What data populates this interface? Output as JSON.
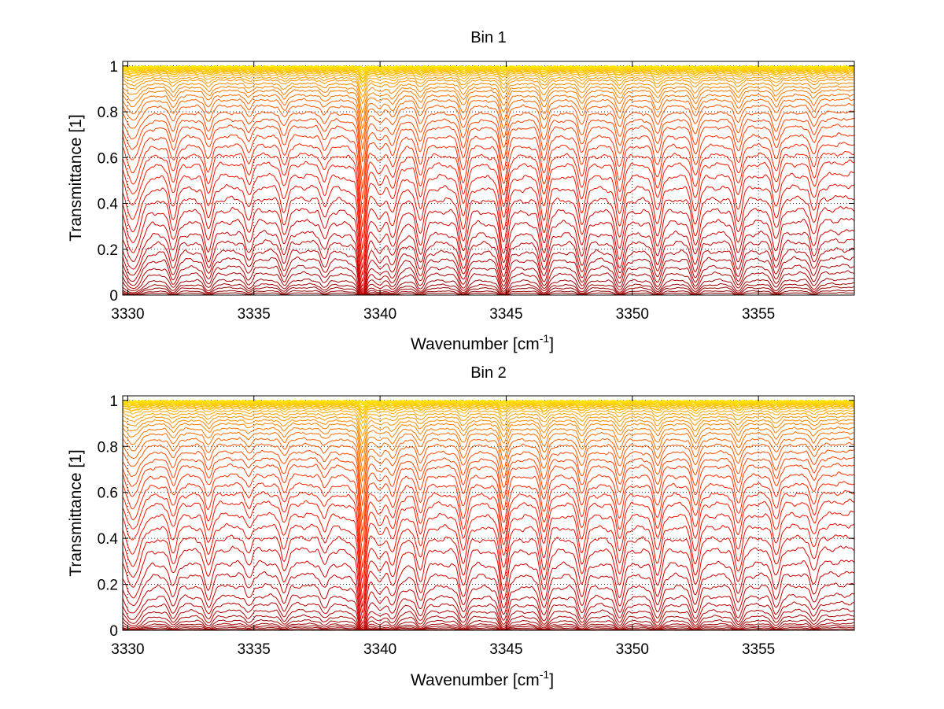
{
  "chart_data": [
    {
      "type": "line",
      "title": "Bin 1",
      "xlabel": "Wavenumber [cm",
      "xlabel_sup": "-1",
      "xlabel_end": "]",
      "ylabel": "Transmittance [1]",
      "xlim": [
        3329.8,
        3358.8
      ],
      "ylim": [
        0,
        1.02
      ],
      "xticks": [
        3330,
        3335,
        3340,
        3345,
        3350,
        3355
      ],
      "xtick_labels": [
        "3330",
        "3335",
        "3340",
        "3345",
        "3350",
        "3355"
      ],
      "yticks": [
        0,
        0.2,
        0.4,
        0.6,
        0.8,
        1
      ],
      "ytick_labels": [
        "0",
        "0.2",
        "0.4",
        "0.6",
        "0.8",
        "1"
      ],
      "grid": true,
      "grid_style": "dotted",
      "num_series": 40,
      "colormap": "hot (dark red for low transmittance through red, orange to yellow near 1)",
      "series_colors": [
        "#8b0000",
        "#b00000",
        "#d40000",
        "#ff1a00",
        "#ff5000",
        "#ff8a00",
        "#ffc000",
        "#ffe600"
      ],
      "baseline_levels": [
        0.01,
        0.02,
        0.035,
        0.05,
        0.07,
        0.1,
        0.13,
        0.165,
        0.2,
        0.24,
        0.28,
        0.33,
        0.38,
        0.43,
        0.48,
        0.53,
        0.58,
        0.62,
        0.66,
        0.7,
        0.74,
        0.77,
        0.8,
        0.83,
        0.855,
        0.875,
        0.895,
        0.91,
        0.925,
        0.94,
        0.95,
        0.96,
        0.968,
        0.975,
        0.981,
        0.986,
        0.99,
        0.993,
        0.996,
        0.998
      ],
      "absorption_lines": [
        {
          "x": 3330.2,
          "depth": 0.7,
          "width": 0.35
        },
        {
          "x": 3331.8,
          "depth": 0.45,
          "width": 0.18
        },
        {
          "x": 3333.2,
          "depth": 0.45,
          "width": 0.18
        },
        {
          "x": 3334.8,
          "depth": 0.3,
          "width": 0.17
        },
        {
          "x": 3336.2,
          "depth": 0.35,
          "width": 0.17
        },
        {
          "x": 3337.8,
          "depth": 0.25,
          "width": 0.17
        },
        {
          "x": 3339.3,
          "depth": 1.6,
          "width": 0.14
        },
        {
          "x": 3340.0,
          "depth": 0.35,
          "width": 0.25
        },
        {
          "x": 3340.5,
          "depth": 0.5,
          "width": 0.2
        },
        {
          "x": 3341.6,
          "depth": 0.5,
          "width": 0.18
        },
        {
          "x": 3343.3,
          "depth": 0.65,
          "width": 0.18
        },
        {
          "x": 3344.9,
          "depth": 0.95,
          "width": 0.17
        },
        {
          "x": 3346.5,
          "depth": 0.7,
          "width": 0.18
        },
        {
          "x": 3348.0,
          "depth": 0.55,
          "width": 0.18
        },
        {
          "x": 3349.5,
          "depth": 0.6,
          "width": 0.18
        },
        {
          "x": 3351.0,
          "depth": 0.55,
          "width": 0.18
        },
        {
          "x": 3352.5,
          "depth": 0.55,
          "width": 0.18
        },
        {
          "x": 3354.2,
          "depth": 0.5,
          "width": 0.18
        },
        {
          "x": 3355.7,
          "depth": 0.45,
          "width": 0.18
        },
        {
          "x": 3357.2,
          "depth": 0.35,
          "width": 0.17
        }
      ]
    },
    {
      "type": "line",
      "title": "Bin 2",
      "xlabel": "Wavenumber [cm",
      "xlabel_sup": "-1",
      "xlabel_end": "]",
      "ylabel": "Transmittance [1]",
      "xlim": [
        3329.8,
        3358.8
      ],
      "ylim": [
        0,
        1.02
      ],
      "xticks": [
        3330,
        3335,
        3340,
        3345,
        3350,
        3355
      ],
      "xtick_labels": [
        "3330",
        "3335",
        "3340",
        "3345",
        "3350",
        "3355"
      ],
      "yticks": [
        0,
        0.2,
        0.4,
        0.6,
        0.8,
        1
      ],
      "ytick_labels": [
        "0",
        "0.2",
        "0.4",
        "0.6",
        "0.8",
        "1"
      ],
      "grid": true,
      "grid_style": "dotted",
      "num_series": 40,
      "colormap": "hot (dark red for low transmittance through red, orange to yellow near 1)",
      "series_colors": [
        "#8b0000",
        "#b00000",
        "#d40000",
        "#ff1a00",
        "#ff5000",
        "#ff8a00",
        "#ffc000",
        "#ffe600"
      ],
      "baseline_levels": [
        0.005,
        0.012,
        0.02,
        0.03,
        0.045,
        0.065,
        0.09,
        0.12,
        0.155,
        0.2,
        0.25,
        0.3,
        0.36,
        0.41,
        0.46,
        0.51,
        0.56,
        0.6,
        0.64,
        0.68,
        0.72,
        0.75,
        0.78,
        0.81,
        0.835,
        0.86,
        0.88,
        0.9,
        0.915,
        0.93,
        0.943,
        0.955,
        0.965,
        0.973,
        0.98,
        0.985,
        0.989,
        0.993,
        0.996,
        0.998
      ],
      "absorption_lines": [
        {
          "x": 3330.2,
          "depth": 0.6,
          "width": 0.35
        },
        {
          "x": 3331.8,
          "depth": 0.35,
          "width": 0.18
        },
        {
          "x": 3333.2,
          "depth": 0.4,
          "width": 0.18
        },
        {
          "x": 3334.8,
          "depth": 0.2,
          "width": 0.17
        },
        {
          "x": 3336.2,
          "depth": 0.3,
          "width": 0.17
        },
        {
          "x": 3337.8,
          "depth": 0.2,
          "width": 0.17
        },
        {
          "x": 3339.3,
          "depth": 1.6,
          "width": 0.14
        },
        {
          "x": 3340.0,
          "depth": 0.35,
          "width": 0.25
        },
        {
          "x": 3340.5,
          "depth": 0.5,
          "width": 0.2
        },
        {
          "x": 3341.6,
          "depth": 0.45,
          "width": 0.18
        },
        {
          "x": 3343.3,
          "depth": 0.55,
          "width": 0.18
        },
        {
          "x": 3344.9,
          "depth": 0.9,
          "width": 0.17
        },
        {
          "x": 3346.5,
          "depth": 0.65,
          "width": 0.18
        },
        {
          "x": 3348.0,
          "depth": 0.55,
          "width": 0.18
        },
        {
          "x": 3349.5,
          "depth": 0.55,
          "width": 0.18
        },
        {
          "x": 3351.0,
          "depth": 0.55,
          "width": 0.18
        },
        {
          "x": 3352.5,
          "depth": 0.55,
          "width": 0.18
        },
        {
          "x": 3354.2,
          "depth": 0.5,
          "width": 0.18
        },
        {
          "x": 3355.7,
          "depth": 0.4,
          "width": 0.18
        },
        {
          "x": 3357.2,
          "depth": 0.3,
          "width": 0.17
        }
      ]
    }
  ]
}
